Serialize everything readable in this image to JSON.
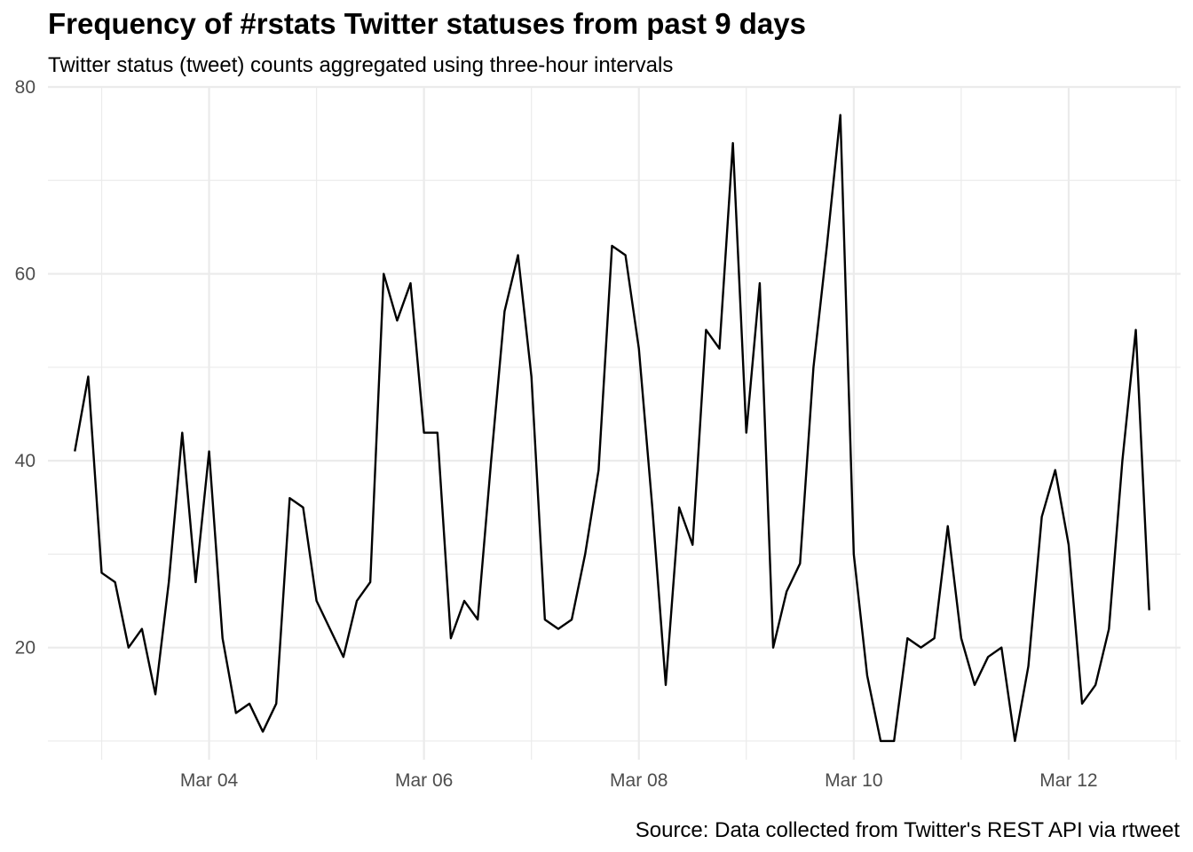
{
  "chart_data": {
    "type": "line",
    "title": "Frequency of #rstats Twitter statuses from past 9 days",
    "subtitle": "Twitter status (tweet) counts aggregated using three-hour intervals",
    "caption": "Source: Data collected from Twitter's REST API via rtweet",
    "xlabel": "",
    "ylabel": "",
    "x_ticks": [
      "Mar 04",
      "Mar 06",
      "Mar 08",
      "Mar 10",
      "Mar 12"
    ],
    "x_tick_dates": [
      "2018-03-04",
      "2018-03-06",
      "2018-03-08",
      "2018-03-10",
      "2018-03-12"
    ],
    "y_ticks": [
      20,
      40,
      60,
      80
    ],
    "ylim": [
      8,
      80
    ],
    "xlim": [
      "2018-03-02 12:00",
      "2018-03-13 01:00"
    ],
    "grid": true,
    "line_color": "#000000",
    "x": [
      "2018-03-02 18:00",
      "2018-03-02 21:00",
      "2018-03-03 00:00",
      "2018-03-03 03:00",
      "2018-03-03 06:00",
      "2018-03-03 09:00",
      "2018-03-03 12:00",
      "2018-03-03 15:00",
      "2018-03-03 18:00",
      "2018-03-03 21:00",
      "2018-03-04 00:00",
      "2018-03-04 03:00",
      "2018-03-04 06:00",
      "2018-03-04 09:00",
      "2018-03-04 12:00",
      "2018-03-04 15:00",
      "2018-03-04 18:00",
      "2018-03-04 21:00",
      "2018-03-05 00:00",
      "2018-03-05 03:00",
      "2018-03-05 06:00",
      "2018-03-05 09:00",
      "2018-03-05 12:00",
      "2018-03-05 15:00",
      "2018-03-05 18:00",
      "2018-03-05 21:00",
      "2018-03-06 00:00",
      "2018-03-06 03:00",
      "2018-03-06 06:00",
      "2018-03-06 09:00",
      "2018-03-06 12:00",
      "2018-03-06 15:00",
      "2018-03-06 18:00",
      "2018-03-06 21:00",
      "2018-03-07 00:00",
      "2018-03-07 03:00",
      "2018-03-07 06:00",
      "2018-03-07 09:00",
      "2018-03-07 12:00",
      "2018-03-07 15:00",
      "2018-03-07 18:00",
      "2018-03-07 21:00",
      "2018-03-08 00:00",
      "2018-03-08 03:00",
      "2018-03-08 06:00",
      "2018-03-08 09:00",
      "2018-03-08 12:00",
      "2018-03-08 15:00",
      "2018-03-08 18:00",
      "2018-03-08 21:00",
      "2018-03-09 00:00",
      "2018-03-09 03:00",
      "2018-03-09 06:00",
      "2018-03-09 09:00",
      "2018-03-09 12:00",
      "2018-03-09 15:00",
      "2018-03-09 18:00",
      "2018-03-09 21:00",
      "2018-03-10 00:00",
      "2018-03-10 03:00",
      "2018-03-10 06:00",
      "2018-03-10 09:00",
      "2018-03-10 12:00",
      "2018-03-10 15:00",
      "2018-03-10 18:00",
      "2018-03-10 21:00",
      "2018-03-11 00:00",
      "2018-03-11 03:00",
      "2018-03-11 06:00",
      "2018-03-11 09:00",
      "2018-03-11 12:00",
      "2018-03-11 15:00",
      "2018-03-11 18:00",
      "2018-03-11 21:00",
      "2018-03-12 00:00",
      "2018-03-12 03:00",
      "2018-03-12 06:00",
      "2018-03-12 09:00",
      "2018-03-12 12:00",
      "2018-03-12 15:00",
      "2018-03-12 18:00"
    ],
    "series": [
      {
        "values": [
          41,
          49,
          28,
          27,
          20,
          22,
          15,
          27,
          43,
          27,
          41,
          21,
          13,
          14,
          11,
          14,
          36,
          35,
          25,
          22,
          19,
          25,
          27,
          60,
          55,
          59,
          43,
          43,
          21,
          25,
          23,
          40,
          56,
          62,
          49,
          23,
          22,
          23,
          30,
          39,
          63,
          62,
          52,
          35,
          16,
          35,
          31,
          54,
          52,
          74,
          43,
          59,
          20,
          26,
          29,
          50,
          63,
          77,
          30,
          17,
          10,
          10,
          21,
          20,
          21,
          33,
          21,
          16,
          19,
          20,
          10,
          18,
          34,
          39,
          31,
          14,
          16,
          22,
          40,
          54,
          24
        ]
      }
    ]
  }
}
